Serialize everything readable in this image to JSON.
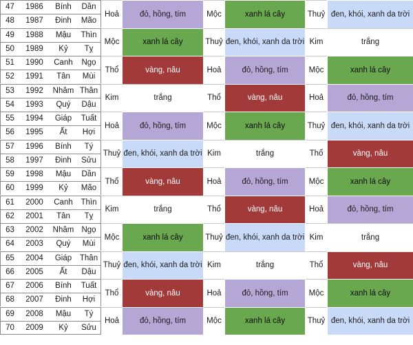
{
  "colors": {
    "purple": "#b4a7d6",
    "green": "#6aa84f",
    "red": "#a33a3a",
    "white": "#ffffff",
    "blue": "#c9daf8"
  },
  "rows": [
    {
      "num": "47",
      "year": "1986",
      "can": "Bính",
      "chi": "Dần"
    },
    {
      "num": "48",
      "year": "1987",
      "can": "Đinh",
      "chi": "Mão"
    },
    {
      "num": "49",
      "year": "1988",
      "can": "Mậu",
      "chi": "Thìn"
    },
    {
      "num": "50",
      "year": "1989",
      "can": "Kỷ",
      "chi": "Tỵ"
    },
    {
      "num": "51",
      "year": "1990",
      "can": "Canh",
      "chi": "Ngọ"
    },
    {
      "num": "52",
      "year": "1991",
      "can": "Tân",
      "chi": "Mùi"
    },
    {
      "num": "53",
      "year": "1992",
      "can": "Nhâm",
      "chi": "Thân"
    },
    {
      "num": "54",
      "year": "1993",
      "can": "Quý",
      "chi": "Dậu"
    },
    {
      "num": "55",
      "year": "1994",
      "can": "Giáp",
      "chi": "Tuất"
    },
    {
      "num": "56",
      "year": "1995",
      "can": "Ất",
      "chi": "Hợi"
    },
    {
      "num": "57",
      "year": "1996",
      "can": "Bính",
      "chi": "Tý"
    },
    {
      "num": "58",
      "year": "1997",
      "can": "Đinh",
      "chi": "Sửu"
    },
    {
      "num": "59",
      "year": "1998",
      "can": "Mậu",
      "chi": "Dần"
    },
    {
      "num": "60",
      "year": "1999",
      "can": "Kỷ",
      "chi": "Mão"
    },
    {
      "num": "61",
      "year": "2000",
      "can": "Canh",
      "chi": "Thìn"
    },
    {
      "num": "62",
      "year": "2001",
      "can": "Tân",
      "chi": "Tỵ"
    },
    {
      "num": "63",
      "year": "2002",
      "can": "Nhâm",
      "chi": "Ngọ"
    },
    {
      "num": "64",
      "year": "2003",
      "can": "Quý",
      "chi": "Mùi"
    },
    {
      "num": "65",
      "year": "2004",
      "can": "Giáp",
      "chi": "Thân"
    },
    {
      "num": "66",
      "year": "2005",
      "can": "Ất",
      "chi": "Dậu"
    },
    {
      "num": "67",
      "year": "2006",
      "can": "Bính",
      "chi": "Tuất"
    },
    {
      "num": "68",
      "year": "2007",
      "can": "Đinh",
      "chi": "Hợi"
    },
    {
      "num": "69",
      "year": "2008",
      "can": "Mậu",
      "chi": "Tý"
    },
    {
      "num": "70",
      "year": "2009",
      "can": "Kỷ",
      "chi": "Sửu"
    }
  ],
  "groups": [
    {
      "e1": "Hoả",
      "k1": "đỏ, hồng, tím",
      "c1": "purple",
      "e2": "Mộc",
      "k2": "xanh lá cây",
      "c2": "green",
      "e3": "Thuỷ",
      "k3": "đen, khói, xanh da trời",
      "c3": "blue"
    },
    {
      "e1": "Mộc",
      "k1": "xanh lá cây",
      "c1": "green",
      "e2": "Thuỷ",
      "k2": "đen, khói, xanh da trời",
      "c2": "blue",
      "e3": "Kim",
      "k3": "trắng",
      "c3": "white"
    },
    {
      "e1": "Thổ",
      "k1": "vàng, nâu",
      "c1": "red",
      "e2": "Hoả",
      "k2": "đỏ, hồng, tím",
      "c2": "purple",
      "e3": "Mộc",
      "k3": "xanh lá cây",
      "c3": "green"
    },
    {
      "e1": "Kim",
      "k1": "trắng",
      "c1": "white",
      "e2": "Thổ",
      "k2": "vàng, nâu",
      "c2": "red",
      "e3": "Hoả",
      "k3": "đỏ, hồng, tím",
      "c3": "purple"
    },
    {
      "e1": "Hoả",
      "k1": "đỏ, hồng, tím",
      "c1": "purple",
      "e2": "Mộc",
      "k2": "xanh lá cây",
      "c2": "green",
      "e3": "Thuỷ",
      "k3": "đen, khói, xanh da trời",
      "c3": "blue"
    },
    {
      "e1": "Thuỷ",
      "k1": "đen, khói, xanh da trời",
      "c1": "blue",
      "e2": "Kim",
      "k2": "trắng",
      "c2": "white",
      "e3": "Thổ",
      "k3": "vàng, nâu",
      "c3": "red"
    },
    {
      "e1": "Thổ",
      "k1": "vàng, nâu",
      "c1": "red",
      "e2": "Hoả",
      "k2": "đỏ, hồng, tím",
      "c2": "purple",
      "e3": "Mộc",
      "k3": "xanh lá cây",
      "c3": "green"
    },
    {
      "e1": "Kim",
      "k1": "trắng",
      "c1": "white",
      "e2": "Thổ",
      "k2": "vàng, nâu",
      "c2": "red",
      "e3": "Hoả",
      "k3": "đỏ, hồng, tím",
      "c3": "purple"
    },
    {
      "e1": "Mộc",
      "k1": "xanh lá cây",
      "c1": "green",
      "e2": "Thuỷ",
      "k2": "đen, khói, xanh da trời",
      "c2": "blue",
      "e3": "Kim",
      "k3": "trắng",
      "c3": "white"
    },
    {
      "e1": "Thuỷ",
      "k1": "đen, khói, xanh da trời",
      "c1": "blue",
      "e2": "Kim",
      "k2": "trắng",
      "c2": "white",
      "e3": "Thổ",
      "k3": "vàng, nâu",
      "c3": "red"
    },
    {
      "e1": "Thổ",
      "k1": "vàng, nâu",
      "c1": "red",
      "e2": "Hoả",
      "k2": "đỏ, hồng, tím",
      "c2": "purple",
      "e3": "Mộc",
      "k3": "xanh lá cây",
      "c3": "green"
    },
    {
      "e1": "Hoả",
      "k1": "đỏ, hồng, tím",
      "c1": "purple",
      "e2": "Mộc",
      "k2": "xanh lá cây",
      "c2": "green",
      "e3": "Thuỷ",
      "k3": "đen, khói, xanh da trời",
      "c3": "blue"
    }
  ]
}
